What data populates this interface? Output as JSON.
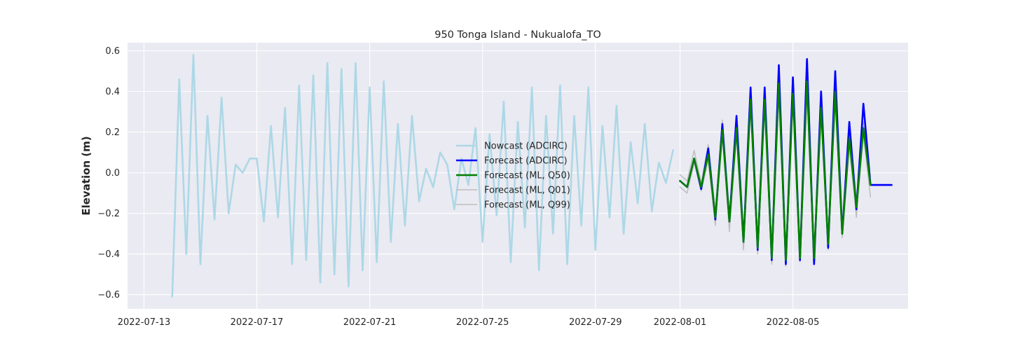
{
  "chart_data": {
    "type": "line",
    "title": "950 Tonga Island - Nukualofa_TO",
    "xlabel": "",
    "ylabel": "Elevation (m)",
    "x_axis_type": "date",
    "xlim": [
      "2022-07-12T10:00",
      "2022-08-09T02:00"
    ],
    "ylim": [
      -0.67,
      0.64
    ],
    "x_ticks": [
      "2022-07-13",
      "2022-07-17",
      "2022-07-21",
      "2022-07-25",
      "2022-07-29",
      "2022-08-01",
      "2022-08-05"
    ],
    "y_ticks": [
      -0.6,
      -0.4,
      -0.2,
      0.0,
      0.2,
      0.4,
      0.6
    ],
    "y_tick_labels": [
      "−0.6",
      "−0.4",
      "−0.2",
      "0.0",
      "0.2",
      "0.4",
      "0.6"
    ],
    "grid": true,
    "legend_position": "center",
    "background_color": "#eaeaf2",
    "series": [
      {
        "name": "Nowcast (ADCIRC)",
        "color": "#add8e6",
        "x": [
          "2022-07-14T00:00",
          "2022-07-14T06:00",
          "2022-07-14T12:00",
          "2022-07-14T18:00",
          "2022-07-15T00:00",
          "2022-07-15T06:00",
          "2022-07-15T12:00",
          "2022-07-15T18:00",
          "2022-07-16T00:00",
          "2022-07-16T06:00",
          "2022-07-16T12:00",
          "2022-07-16T18:00",
          "2022-07-17T00:00",
          "2022-07-17T06:00",
          "2022-07-17T12:00",
          "2022-07-17T18:00",
          "2022-07-18T00:00",
          "2022-07-18T06:00",
          "2022-07-18T12:00",
          "2022-07-18T18:00",
          "2022-07-19T00:00",
          "2022-07-19T06:00",
          "2022-07-19T12:00",
          "2022-07-19T18:00",
          "2022-07-20T00:00",
          "2022-07-20T06:00",
          "2022-07-20T12:00",
          "2022-07-20T18:00",
          "2022-07-21T00:00",
          "2022-07-21T06:00",
          "2022-07-21T12:00",
          "2022-07-21T18:00",
          "2022-07-22T00:00",
          "2022-07-22T06:00",
          "2022-07-22T12:00",
          "2022-07-22T18:00",
          "2022-07-23T00:00",
          "2022-07-23T06:00",
          "2022-07-23T12:00",
          "2022-07-23T18:00",
          "2022-07-24T00:00",
          "2022-07-24T06:00",
          "2022-07-24T12:00",
          "2022-07-24T18:00",
          "2022-07-25T00:00",
          "2022-07-25T06:00",
          "2022-07-25T12:00",
          "2022-07-25T18:00",
          "2022-07-26T00:00",
          "2022-07-26T06:00",
          "2022-07-26T12:00",
          "2022-07-26T18:00",
          "2022-07-27T00:00",
          "2022-07-27T06:00",
          "2022-07-27T12:00",
          "2022-07-27T18:00",
          "2022-07-28T00:00",
          "2022-07-28T06:00",
          "2022-07-28T12:00",
          "2022-07-28T18:00",
          "2022-07-29T00:00",
          "2022-07-29T06:00",
          "2022-07-29T12:00",
          "2022-07-29T18:00",
          "2022-07-30T00:00",
          "2022-07-30T06:00",
          "2022-07-30T12:00",
          "2022-07-30T18:00",
          "2022-07-31T00:00",
          "2022-07-31T06:00",
          "2022-07-31T12:00",
          "2022-07-31T18:00"
        ],
        "values": [
          -0.61,
          0.46,
          -0.4,
          0.58,
          -0.45,
          0.28,
          -0.23,
          0.37,
          -0.2,
          0.04,
          0.0,
          0.07,
          0.07,
          -0.24,
          0.23,
          -0.22,
          0.32,
          -0.45,
          0.43,
          -0.43,
          0.48,
          -0.54,
          0.54,
          -0.5,
          0.51,
          -0.56,
          0.54,
          -0.48,
          0.42,
          -0.44,
          0.45,
          -0.34,
          0.24,
          -0.26,
          0.28,
          -0.14,
          0.02,
          -0.07,
          0.1,
          0.04,
          -0.18,
          0.07,
          -0.06,
          0.22,
          -0.34,
          0.19,
          -0.21,
          0.35,
          -0.44,
          0.25,
          -0.27,
          0.42,
          -0.48,
          0.28,
          -0.3,
          0.43,
          -0.45,
          0.28,
          -0.26,
          0.42,
          -0.38,
          0.23,
          -0.22,
          0.33,
          -0.3,
          0.15,
          -0.15,
          0.24,
          -0.19,
          0.05,
          -0.05,
          0.11
        ]
      },
      {
        "name": "Forecast (ADCIRC)",
        "color": "#0000ff",
        "x": [
          "2022-08-01T00:00",
          "2022-08-01T06:00",
          "2022-08-01T12:00",
          "2022-08-01T18:00",
          "2022-08-02T00:00",
          "2022-08-02T06:00",
          "2022-08-02T12:00",
          "2022-08-02T18:00",
          "2022-08-03T00:00",
          "2022-08-03T06:00",
          "2022-08-03T12:00",
          "2022-08-03T18:00",
          "2022-08-04T00:00",
          "2022-08-04T06:00",
          "2022-08-04T12:00",
          "2022-08-04T18:00",
          "2022-08-05T00:00",
          "2022-08-05T06:00",
          "2022-08-05T12:00",
          "2022-08-05T18:00",
          "2022-08-06T00:00",
          "2022-08-06T06:00",
          "2022-08-06T12:00",
          "2022-08-06T18:00",
          "2022-08-07T00:00",
          "2022-08-07T06:00",
          "2022-08-07T12:00",
          "2022-08-07T18:00",
          "2022-08-08T00:00",
          "2022-08-08T06:00",
          "2022-08-08T12:00"
        ],
        "values": [
          -0.04,
          -0.07,
          0.07,
          -0.08,
          0.12,
          -0.23,
          0.24,
          -0.24,
          0.28,
          -0.34,
          0.42,
          -0.38,
          0.42,
          -0.43,
          0.53,
          -0.45,
          0.47,
          -0.43,
          0.56,
          -0.45,
          0.4,
          -0.37,
          0.5,
          -0.3,
          0.25,
          -0.18,
          0.34,
          -0.06,
          -0.06,
          -0.06,
          -0.06
        ]
      },
      {
        "name": "Forecast (ML, Q50)",
        "color": "#008000",
        "x": [
          "2022-08-01T00:00",
          "2022-08-01T06:00",
          "2022-08-01T12:00",
          "2022-08-01T18:00",
          "2022-08-02T00:00",
          "2022-08-02T06:00",
          "2022-08-02T12:00",
          "2022-08-02T18:00",
          "2022-08-03T00:00",
          "2022-08-03T06:00",
          "2022-08-03T12:00",
          "2022-08-03T18:00",
          "2022-08-04T00:00",
          "2022-08-04T06:00",
          "2022-08-04T12:00",
          "2022-08-04T18:00",
          "2022-08-05T00:00",
          "2022-08-05T06:00",
          "2022-08-05T12:00",
          "2022-08-05T18:00",
          "2022-08-06T00:00",
          "2022-08-06T06:00",
          "2022-08-06T12:00",
          "2022-08-06T18:00",
          "2022-08-07T00:00",
          "2022-08-07T06:00",
          "2022-08-07T12:00",
          "2022-08-07T18:00"
        ],
        "values": [
          -0.04,
          -0.07,
          0.07,
          -0.07,
          0.09,
          -0.22,
          0.21,
          -0.24,
          0.22,
          -0.34,
          0.36,
          -0.37,
          0.36,
          -0.42,
          0.44,
          -0.43,
          0.39,
          -0.42,
          0.45,
          -0.42,
          0.32,
          -0.35,
          0.4,
          -0.3,
          0.17,
          -0.17,
          0.22,
          -0.06
        ]
      },
      {
        "name": "Forecast (ML, Q01)",
        "color": "#bebebe",
        "x": [
          "2022-08-01T00:00",
          "2022-08-01T06:00",
          "2022-08-01T12:00",
          "2022-08-01T18:00",
          "2022-08-02T00:00",
          "2022-08-02T06:00",
          "2022-08-02T12:00",
          "2022-08-02T18:00",
          "2022-08-03T00:00",
          "2022-08-03T06:00",
          "2022-08-03T12:00",
          "2022-08-03T18:00",
          "2022-08-04T00:00",
          "2022-08-04T06:00",
          "2022-08-04T12:00",
          "2022-08-04T18:00",
          "2022-08-05T00:00",
          "2022-08-05T06:00",
          "2022-08-05T12:00",
          "2022-08-05T18:00",
          "2022-08-06T00:00",
          "2022-08-06T06:00",
          "2022-08-06T12:00",
          "2022-08-06T18:00",
          "2022-08-07T00:00",
          "2022-08-07T06:00",
          "2022-08-07T12:00",
          "2022-08-07T18:00"
        ],
        "values": [
          -0.07,
          -0.1,
          0.05,
          -0.09,
          0.06,
          -0.26,
          0.18,
          -0.29,
          0.19,
          -0.38,
          0.33,
          -0.4,
          0.33,
          -0.45,
          0.41,
          -0.46,
          0.36,
          -0.44,
          0.41,
          -0.44,
          0.29,
          -0.38,
          0.36,
          -0.32,
          0.13,
          -0.22,
          0.19,
          -0.12
        ]
      },
      {
        "name": "Forecast (ML, Q99)",
        "color": "#bebebe",
        "x": [
          "2022-08-01T00:00",
          "2022-08-01T06:00",
          "2022-08-01T12:00",
          "2022-08-01T18:00",
          "2022-08-02T00:00",
          "2022-08-02T06:00",
          "2022-08-02T12:00",
          "2022-08-02T18:00",
          "2022-08-03T00:00",
          "2022-08-03T06:00",
          "2022-08-03T12:00",
          "2022-08-03T18:00",
          "2022-08-04T00:00",
          "2022-08-04T06:00",
          "2022-08-04T12:00",
          "2022-08-04T18:00",
          "2022-08-05T00:00",
          "2022-08-05T06:00",
          "2022-08-05T12:00",
          "2022-08-05T18:00",
          "2022-08-06T00:00",
          "2022-08-06T06:00",
          "2022-08-06T12:00",
          "2022-08-06T18:00",
          "2022-08-07T00:00",
          "2022-08-07T06:00",
          "2022-08-07T12:00",
          "2022-08-07T18:00"
        ],
        "values": [
          -0.01,
          -0.04,
          0.11,
          -0.05,
          0.14,
          -0.19,
          0.26,
          -0.2,
          0.26,
          -0.3,
          0.4,
          -0.33,
          0.4,
          -0.39,
          0.48,
          -0.4,
          0.43,
          -0.39,
          0.49,
          -0.39,
          0.36,
          -0.31,
          0.44,
          -0.27,
          0.2,
          -0.13,
          0.25,
          -0.02
        ]
      }
    ]
  }
}
